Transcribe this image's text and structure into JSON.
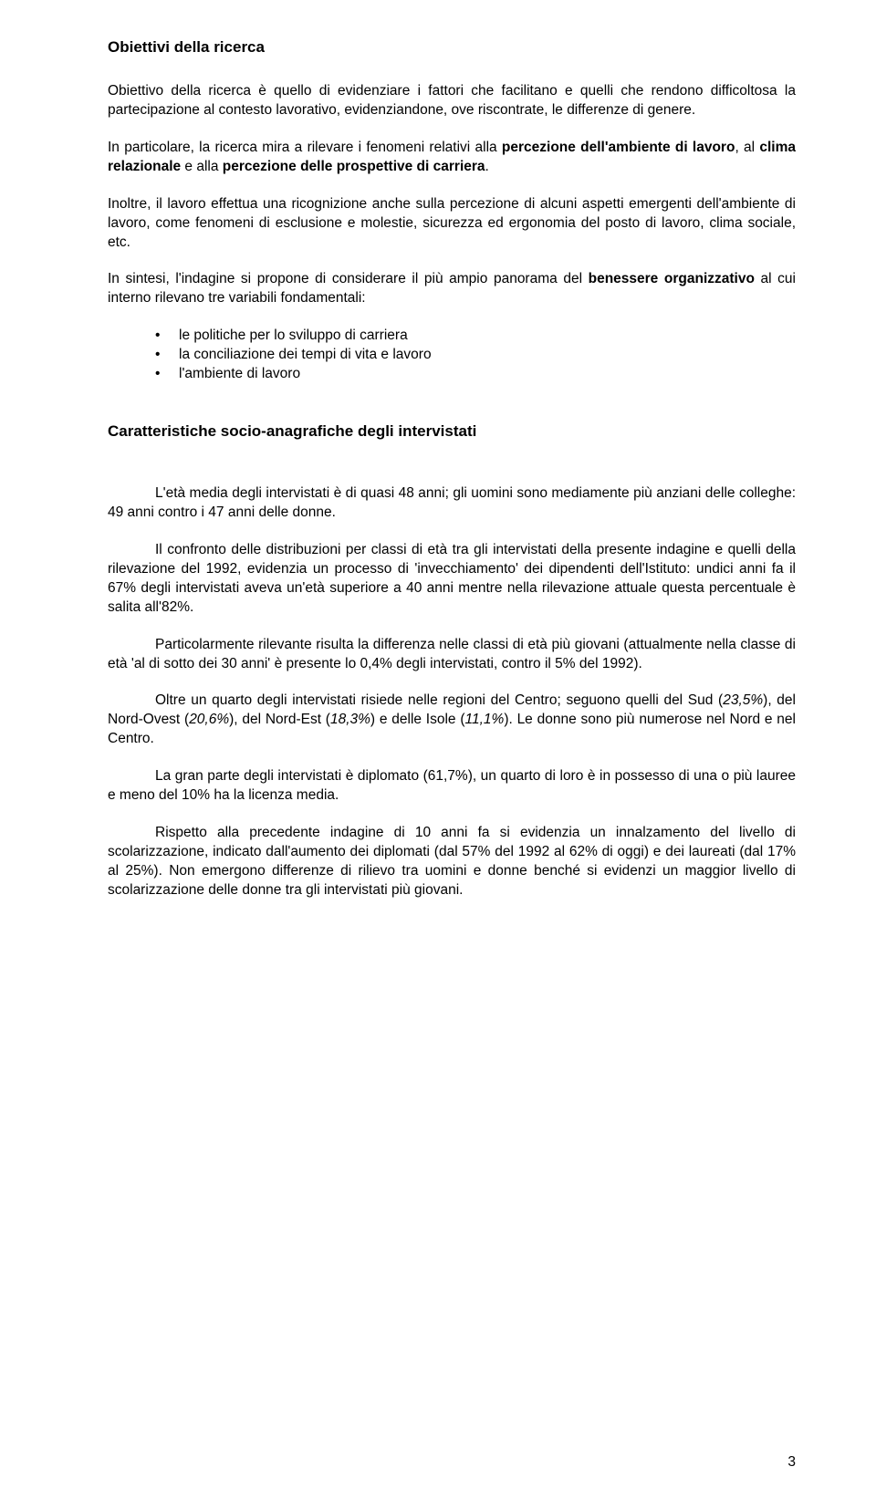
{
  "heading1": "Obiettivi della ricerca",
  "p1_pre": "Obiettivo della ricerca è quello di evidenziare i fattori che facilitano e quelli che rendono difficoltosa la partecipazione al contesto lavorativo, evidenziandone, ove riscontrate, le differenze di genere.",
  "p2_a": "In particolare, la ricerca mira a rilevare i fenomeni relativi alla ",
  "p2_b1": "percezione dell'ambiente di lavoro",
  "p2_c": ", al ",
  "p2_b2": "clima relazionale",
  "p2_d": " e alla ",
  "p2_b3": "percezione delle prospettive di carriera",
  "p2_e": ".",
  "p3": "Inoltre, il lavoro effettua una ricognizione anche sulla percezione di alcuni aspetti emergenti dell'ambiente di lavoro, come fenomeni di esclusione e molestie, sicurezza ed ergonomia del posto di lavoro, clima sociale, etc.",
  "p4_a": "In sintesi, l'indagine si propone di considerare il più ampio panorama del ",
  "p4_b": "benessere organizzativo",
  "p4_c": " al cui interno rilevano tre variabili fondamentali:",
  "bullets": {
    "b1": "le politiche per lo sviluppo di carriera",
    "b2": "la conciliazione dei tempi di vita e lavoro",
    "b3": "l'ambiente di lavoro"
  },
  "heading2": "Caratteristiche socio-anagrafiche degli intervistati",
  "p5": "L'età media degli intervistati è di quasi 48 anni; gli uomini sono mediamente più anziani delle colleghe: 49 anni contro i 47 anni delle donne.",
  "p6": "Il confronto delle distribuzioni per classi di età tra gli intervistati della presente indagine e quelli della rilevazione del 1992, evidenzia un processo di 'invecchiamento' dei dipendenti dell'Istituto: undici anni fa il 67% degli intervistati aveva un'età superiore a 40 anni mentre nella rilevazione attuale questa percentuale è salita all'82%.",
  "p7": "Particolarmente rilevante risulta la differenza nelle classi di età più giovani (attualmente nella classe di età 'al di sotto dei 30 anni' è presente lo 0,4% degli intervistati, contro il 5% del 1992).",
  "p8_a": "Oltre un quarto degli intervistati risiede nelle regioni del Centro; seguono quelli del Sud (",
  "p8_i1": "23,5%",
  "p8_b": "), del Nord-Ovest (",
  "p8_i2": "20,6%",
  "p8_c": "), del Nord-Est (",
  "p8_i3": "18,3%",
  "p8_d": ") e delle Isole (",
  "p8_i4": "11,1%",
  "p8_e": "). Le donne sono più numerose nel Nord e nel Centro.",
  "p9": "La gran parte degli intervistati è diplomato (61,7%), un quarto di loro è in possesso di una o più lauree e meno del 10% ha la licenza media.",
  "p10": "Rispetto alla precedente indagine di 10 anni fa si evidenzia un innalzamento del livello di scolarizzazione, indicato dall'aumento dei diplomati (dal 57% del 1992 al 62% di oggi) e dei laureati (dal 17% al 25%). Non emergono differenze di rilievo tra uomini e donne benché si evidenzi un maggior livello di scolarizzazione delle donne tra gli intervistati più giovani.",
  "page_number": "3"
}
